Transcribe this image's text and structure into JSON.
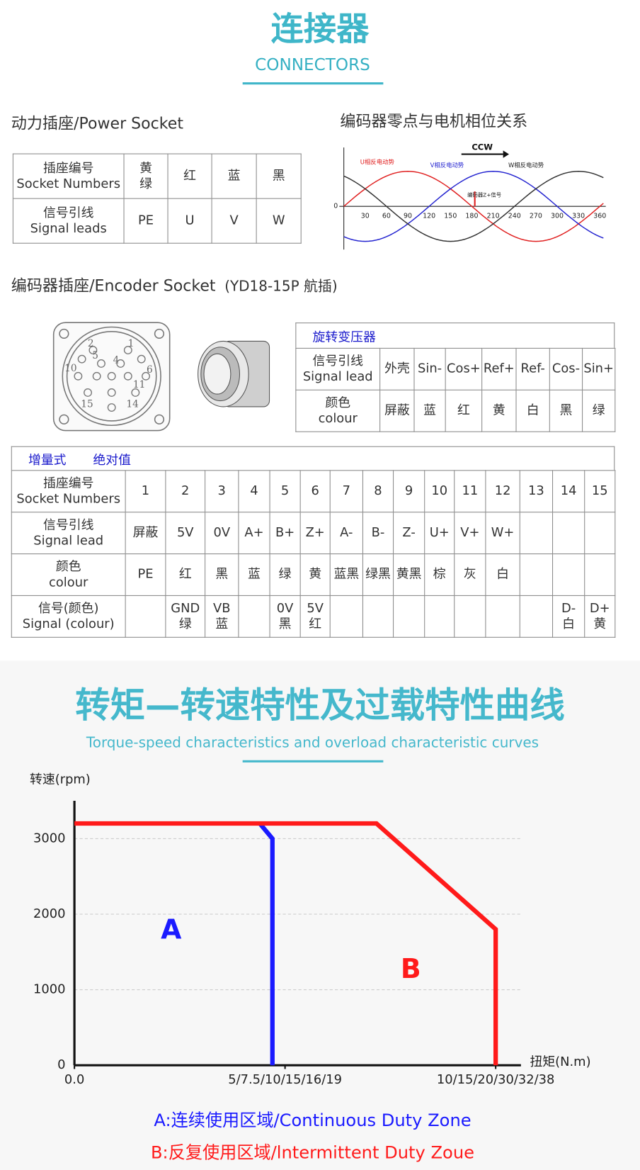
{
  "header": {
    "title": "连接器",
    "subtitle": "CONNECTORS"
  },
  "power_socket": {
    "title": "动力插座/Power Socket",
    "rows": [
      [
        "插座编号\nSocket Numbers",
        "黄\n绿",
        "红",
        "蓝",
        "黑"
      ],
      [
        "信号引线\nSignal leads",
        "PE",
        "U",
        "V",
        "W"
      ]
    ]
  },
  "phase_diagram": {
    "title": "编码器零点与电机相位关系",
    "direction": "CCW",
    "curves": [
      "U相反电动势",
      "V相反电动势",
      "W相反电动势"
    ],
    "marker": "编码器Z+信号",
    "ticks": [
      0,
      30,
      60,
      90,
      120,
      150,
      180,
      210,
      240,
      270,
      300,
      330,
      360
    ]
  },
  "encoder_socket": {
    "title": "编码器插座/Encoder Socket",
    "note": "(YD18-15P 航插)",
    "pins": [
      2,
      1,
      5,
      4,
      10,
      6,
      11,
      15,
      14
    ]
  },
  "resolver": {
    "title": "旋转变压器",
    "rows": [
      [
        "信号引线\nSignal lead",
        "外壳",
        "Sin-",
        "Cos+",
        "Ref+",
        "Ref-",
        "Cos-",
        "Sin+"
      ],
      [
        "颜色\ncolour",
        "屏蔽",
        "蓝",
        "红",
        "黄",
        "白",
        "黑",
        "绿"
      ]
    ]
  },
  "encoder_table": {
    "tabs": [
      "增量式",
      "绝对值"
    ],
    "rows": [
      [
        "插座编号\nSocket Numbers",
        1,
        2,
        3,
        4,
        5,
        6,
        7,
        8,
        9,
        10,
        11,
        12,
        13,
        14,
        15
      ],
      [
        "信号引线\nSignal lead",
        "屏蔽",
        "5V",
        "0V",
        "A+",
        "B+",
        "Z+",
        "A-",
        "B-",
        "Z-",
        "U+",
        "V+",
        "W+",
        null,
        null,
        null
      ],
      [
        "颜色\ncolour",
        "PE",
        "红",
        "黑",
        "蓝",
        "绿",
        "黄",
        "蓝黑",
        "绿黑",
        "黄黑",
        "棕",
        "灰",
        "白",
        null,
        null,
        null
      ],
      [
        "信号(颜色)\nSignal (colour)",
        null,
        "GND\n绿",
        "VB\n蓝",
        null,
        "0V\n黑",
        "5V\n红",
        null,
        null,
        null,
        null,
        null,
        null,
        null,
        "D-\n白",
        "D+\n黄"
      ]
    ]
  },
  "chart_data": {
    "type": "line",
    "title": "转矩—转速特性及过载特性曲线",
    "subtitle": "Torque-speed characteristics and overload characteristic curves",
    "y_label": "转速(rpm)",
    "x_label": "扭矩(N.m)",
    "xlim": [
      0,
      10.6
    ],
    "ylim": [
      0,
      3500
    ],
    "xticks": [
      {
        "value": 0,
        "label": "0.0"
      },
      {
        "value": 5,
        "label": "5/7.5/10/15/16/19"
      },
      {
        "value": 10,
        "label": "10/15/20/30/32/38"
      }
    ],
    "yticks": [
      0,
      1000,
      2000,
      3000
    ],
    "grid": true,
    "series": [
      {
        "name": "A",
        "color": "#1a1aff",
        "x": [
          4.4,
          4.7,
          4.7
        ],
        "values": [
          3200,
          3000,
          0
        ]
      },
      {
        "name": "B",
        "color": "#ff1a1a",
        "x": [
          0,
          7.17,
          10,
          10
        ],
        "values": [
          3200,
          3200,
          1800,
          0
        ]
      }
    ],
    "notes": [
      "A:连续使用区域/Continuous Duty Zone",
      "B:反复使用区域/lntermittent Duty Zoue"
    ]
  }
}
